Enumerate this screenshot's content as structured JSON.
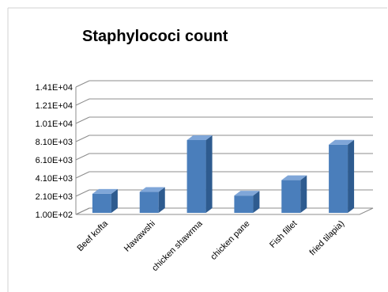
{
  "chart_data": {
    "type": "bar",
    "title": "Staphylococi count",
    "categories": [
      "Beef kofta",
      "Hawawshi",
      "chicken shawrma",
      "chicken pane",
      "Fish fillet",
      "fried tilapia)"
    ],
    "values": [
      2200,
      2400,
      8100,
      2000,
      3700,
      7600
    ],
    "yticks": [
      "1.00E+02",
      "2.10E+03",
      "4.10E+03",
      "6.10E+03",
      "8.10E+03",
      "1.01E+04",
      "1.21E+04",
      "1.41E+04"
    ],
    "ylim": [
      100,
      14100
    ],
    "xlabel": "",
    "ylabel": "",
    "grid": true,
    "legend": "none",
    "style": "3d-column"
  },
  "colors": {
    "bar_front": "#4a7ebb",
    "bar_side": "#2e5b8f",
    "bar_top": "#7fa6d8",
    "gridline": "#8c8c8c",
    "text": "#000000"
  }
}
